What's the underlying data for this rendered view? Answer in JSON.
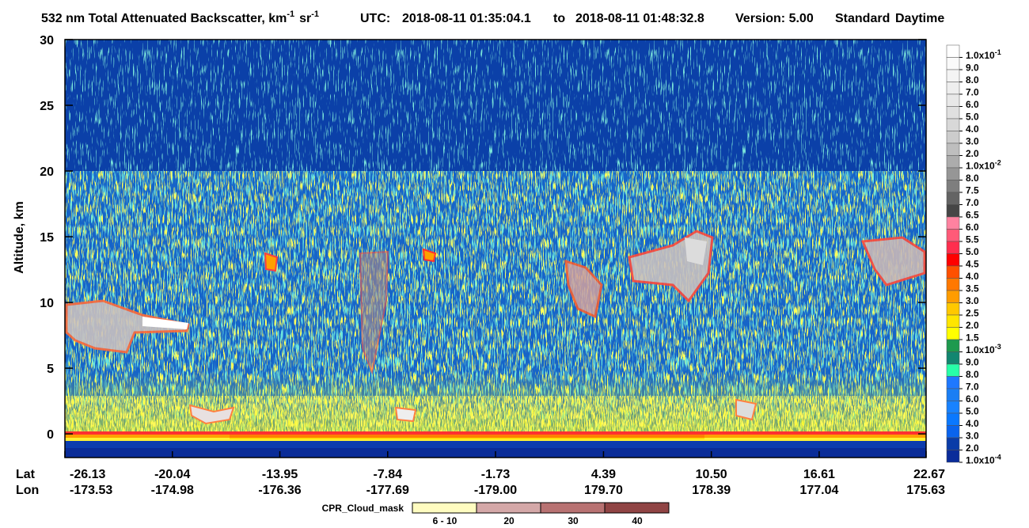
{
  "chart_data": {
    "type": "heatmap",
    "title": {
      "text": "532 nm Total Attenuated Backscatter, km",
      "exp1": "-1",
      "unit2": "sr",
      "exp2": "-1",
      "utc": "UTC:",
      "start": "2018-08-11 01:35:04.1",
      "to": "to",
      "end": "2018-08-11 01:48:32.8",
      "version": "Version: 5.00",
      "product": "Standard",
      "daytime": "Daytime"
    },
    "y_label": "Altitude, km",
    "ylim": [
      -1.8,
      30
    ],
    "yticks": [
      0,
      5,
      10,
      15,
      20,
      25,
      30
    ],
    "x_row_labels": [
      "Lat",
      "Lon"
    ],
    "xlim": [
      -26.13,
      22.67
    ],
    "xticks": [
      -26.13,
      -20.04,
      -13.95,
      -7.84,
      -1.73,
      4.39,
      {
        "value": 10.5,
        "label": "10.50"
      },
      16.61,
      22.67
    ],
    "xticks_lon": [
      -173.53,
      -174.98,
      -176.36,
      -177.69,
      {
        "value": -179,
        "label": "-179.00"
      },
      {
        "value": 179.7,
        "label": "179.70"
      },
      178.39,
      177.04,
      175.63
    ],
    "colorbar": [
      {
        "label": "1.0x10",
        "sup": "-1",
        "color": "#ffffff"
      },
      {
        "label": "9.0",
        "color": "#fafafa"
      },
      {
        "label": "8.0",
        "color": "#f4f4f4"
      },
      {
        "label": "7.0",
        "color": "#eeeeee"
      },
      {
        "label": "6.0",
        "color": "#e8e8e8"
      },
      {
        "label": "5.0",
        "color": "#e0e0e0"
      },
      {
        "label": "4.0",
        "color": "#d8d8d8"
      },
      {
        "label": "3.0",
        "color": "#cccccc"
      },
      {
        "label": "2.0",
        "color": "#bebebe"
      },
      {
        "label": "1.0x10",
        "sup": "-2",
        "color": "#acacac"
      },
      {
        "label": "8.0",
        "color": "#969696"
      },
      {
        "label": "7.5",
        "color": "#7e7e7e"
      },
      {
        "label": "7.0",
        "color": "#646464"
      },
      {
        "label": "6.5",
        "color": "#464646"
      },
      {
        "label": "6.0",
        "color": "#ff82a0"
      },
      {
        "label": "5.5",
        "color": "#ff5a78"
      },
      {
        "label": "5.0",
        "color": "#ff2e4e"
      },
      {
        "label": "4.5",
        "color": "#ff0000"
      },
      {
        "label": "4.0",
        "color": "#ff5000"
      },
      {
        "label": "3.5",
        "color": "#ff7800"
      },
      {
        "label": "3.0",
        "color": "#ff9c00"
      },
      {
        "label": "2.5",
        "color": "#ffc800"
      },
      {
        "label": "2.0",
        "color": "#ffe600"
      },
      {
        "label": "1.5",
        "color": "#ffff00"
      },
      {
        "label": "1.0x10",
        "sup": "-3",
        "color": "#1e9a4e"
      },
      {
        "label": "9.0",
        "color": "#128670"
      },
      {
        "label": "8.0",
        "color": "#28ffa8"
      },
      {
        "label": "7.0",
        "color": "#1e78ff"
      },
      {
        "label": "6.0",
        "color": "#1a7ef4"
      },
      {
        "label": "5.0",
        "color": "#1882ff"
      },
      {
        "label": "4.0",
        "color": "#0a78ff"
      },
      {
        "label": "3.0",
        "color": "#0a64ee"
      },
      {
        "label": "2.0",
        "color": "#0a3ca8"
      },
      {
        "label": "1.0x10",
        "sup": "-4",
        "color": "#0a2c9a"
      }
    ],
    "cpr_legend": {
      "title": "CPR_Cloud_mask",
      "items": [
        {
          "label": "6 - 10",
          "color": "#fffcc0"
        },
        {
          "label": "20",
          "color": "#d4a8a8"
        },
        {
          "label": "30",
          "color": "#b87272"
        },
        {
          "label": "40",
          "color": "#904444"
        }
      ]
    }
  }
}
